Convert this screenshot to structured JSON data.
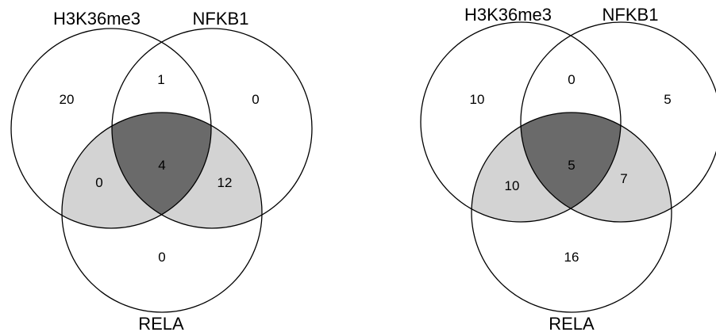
{
  "diagrams": [
    {
      "sets": [
        "H3K36me3",
        "NFKB1",
        "RELA"
      ],
      "regions": {
        "a_only": "20",
        "b_only": "0",
        "c_only": "0",
        "ab_only": "1",
        "ac_only": "0",
        "bc_only": "12",
        "abc": "4"
      }
    },
    {
      "sets": [
        "H3K36me3",
        "NFKB1",
        "RELA"
      ],
      "regions": {
        "a_only": "10",
        "b_only": "5",
        "c_only": "16",
        "ab_only": "0",
        "ac_only": "10",
        "bc_only": "7",
        "abc": "5"
      }
    }
  ],
  "colors": {
    "outline": "#000000",
    "pair_with_rela": "#d3d3d3",
    "triple": "#6a6a6a",
    "background": "#ffffff"
  }
}
